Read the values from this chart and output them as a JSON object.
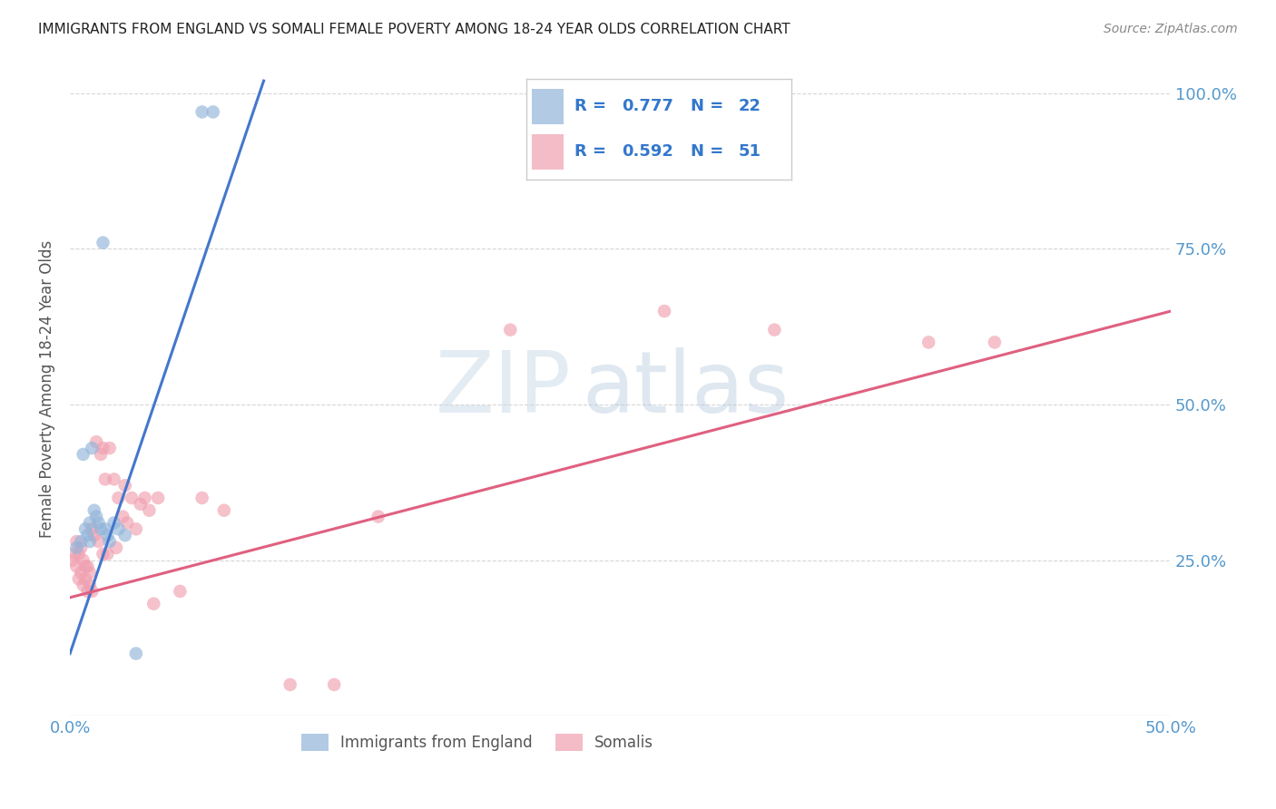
{
  "title": "IMMIGRANTS FROM ENGLAND VS SOMALI FEMALE POVERTY AMONG 18-24 YEAR OLDS CORRELATION CHART",
  "source": "Source: ZipAtlas.com",
  "ylabel": "Female Poverty Among 18-24 Year Olds",
  "xlim": [
    0.0,
    0.5
  ],
  "ylim": [
    0.0,
    1.05
  ],
  "x_ticks": [
    0.0,
    0.1,
    0.2,
    0.3,
    0.4,
    0.5
  ],
  "x_tick_labels_left": [
    "0.0%",
    "",
    "",
    "",
    "",
    ""
  ],
  "x_tick_labels_right": [
    "",
    "",
    "",
    "",
    "",
    "50.0%"
  ],
  "y_ticks": [
    0.0,
    0.25,
    0.5,
    0.75,
    1.0
  ],
  "y_tick_labels": [
    "",
    "25.0%",
    "50.0%",
    "75.0%",
    "100.0%"
  ],
  "blue_R": "0.777",
  "blue_N": "22",
  "pink_R": "0.592",
  "pink_N": "51",
  "legend_label_blue": "Immigrants from England",
  "legend_label_pink": "Somalis",
  "blue_scatter_x": [
    0.003,
    0.005,
    0.006,
    0.007,
    0.008,
    0.009,
    0.009,
    0.01,
    0.011,
    0.012,
    0.013,
    0.014,
    0.015,
    0.016,
    0.017,
    0.018,
    0.02,
    0.022,
    0.025,
    0.03,
    0.06,
    0.065
  ],
  "blue_scatter_y": [
    0.27,
    0.28,
    0.42,
    0.3,
    0.29,
    0.28,
    0.31,
    0.43,
    0.33,
    0.32,
    0.31,
    0.3,
    0.76,
    0.3,
    0.29,
    0.28,
    0.31,
    0.3,
    0.29,
    0.1,
    0.97,
    0.97
  ],
  "pink_scatter_x": [
    0.001,
    0.002,
    0.003,
    0.003,
    0.004,
    0.004,
    0.005,
    0.005,
    0.006,
    0.006,
    0.007,
    0.007,
    0.008,
    0.008,
    0.009,
    0.009,
    0.01,
    0.01,
    0.011,
    0.012,
    0.013,
    0.014,
    0.015,
    0.015,
    0.016,
    0.017,
    0.018,
    0.02,
    0.021,
    0.022,
    0.024,
    0.025,
    0.026,
    0.028,
    0.03,
    0.032,
    0.034,
    0.036,
    0.038,
    0.04,
    0.05,
    0.06,
    0.07,
    0.1,
    0.12,
    0.14,
    0.2,
    0.27,
    0.32,
    0.39,
    0.42
  ],
  "pink_scatter_y": [
    0.25,
    0.26,
    0.24,
    0.28,
    0.22,
    0.26,
    0.23,
    0.27,
    0.21,
    0.25,
    0.22,
    0.24,
    0.2,
    0.24,
    0.21,
    0.23,
    0.2,
    0.3,
    0.29,
    0.44,
    0.28,
    0.42,
    0.26,
    0.43,
    0.38,
    0.26,
    0.43,
    0.38,
    0.27,
    0.35,
    0.32,
    0.37,
    0.31,
    0.35,
    0.3,
    0.34,
    0.35,
    0.33,
    0.18,
    0.35,
    0.2,
    0.35,
    0.33,
    0.05,
    0.05,
    0.32,
    0.62,
    0.65,
    0.62,
    0.6,
    0.6
  ],
  "blue_line_x": [
    0.0,
    0.088
  ],
  "blue_line_y": [
    0.1,
    1.02
  ],
  "pink_line_x": [
    0.0,
    0.5
  ],
  "pink_line_y": [
    0.19,
    0.65
  ],
  "watermark_zip": "ZIP",
  "watermark_atlas": "atlas",
  "background_color": "#ffffff",
  "blue_color": "#92b4d9",
  "pink_color": "#f0a0b0",
  "blue_line_color": "#4477cc",
  "pink_line_color": "#e06080",
  "grid_color": "#cccccc",
  "title_color": "#222222",
  "axis_label_color": "#555555",
  "tick_label_color": "#5599cc",
  "legend_box_bg": "#ffffff",
  "legend_box_edge": "#cccccc",
  "legend_text_rn_color": "#3377cc",
  "legend_text_value_color": "#3377cc"
}
